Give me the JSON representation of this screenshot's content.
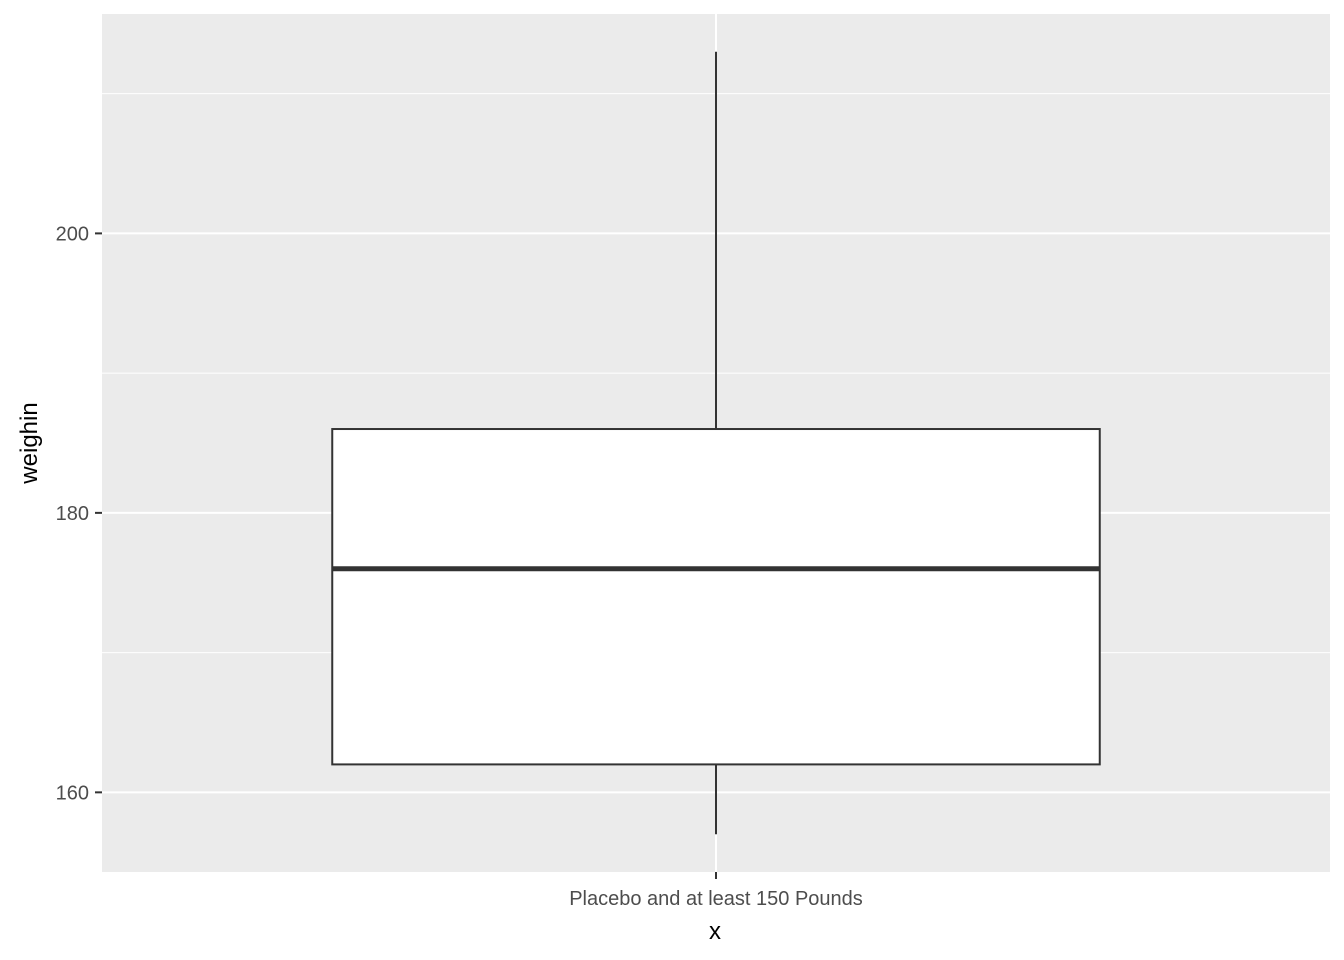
{
  "chart_data": {
    "type": "boxplot",
    "xlabel": "x",
    "ylabel": "weighin",
    "categories": [
      "Placebo and at least 150 Pounds"
    ],
    "boxes": [
      {
        "category": "Placebo and at least 150 Pounds",
        "whisker_low": 157,
        "q1": 162,
        "median": 176,
        "q3": 186,
        "whisker_high": 213
      }
    ],
    "ylim": [
      154.3,
      215.7
    ],
    "y_ticks": [
      160,
      180,
      200
    ],
    "y_minor_ticks": [
      170,
      190,
      210
    ],
    "grid": true,
    "colors": {
      "panel": "#ebebeb",
      "grid": "#ffffff",
      "box_fill": "#ffffff",
      "box_line": "#333333",
      "tick_mark": "#333333"
    }
  }
}
